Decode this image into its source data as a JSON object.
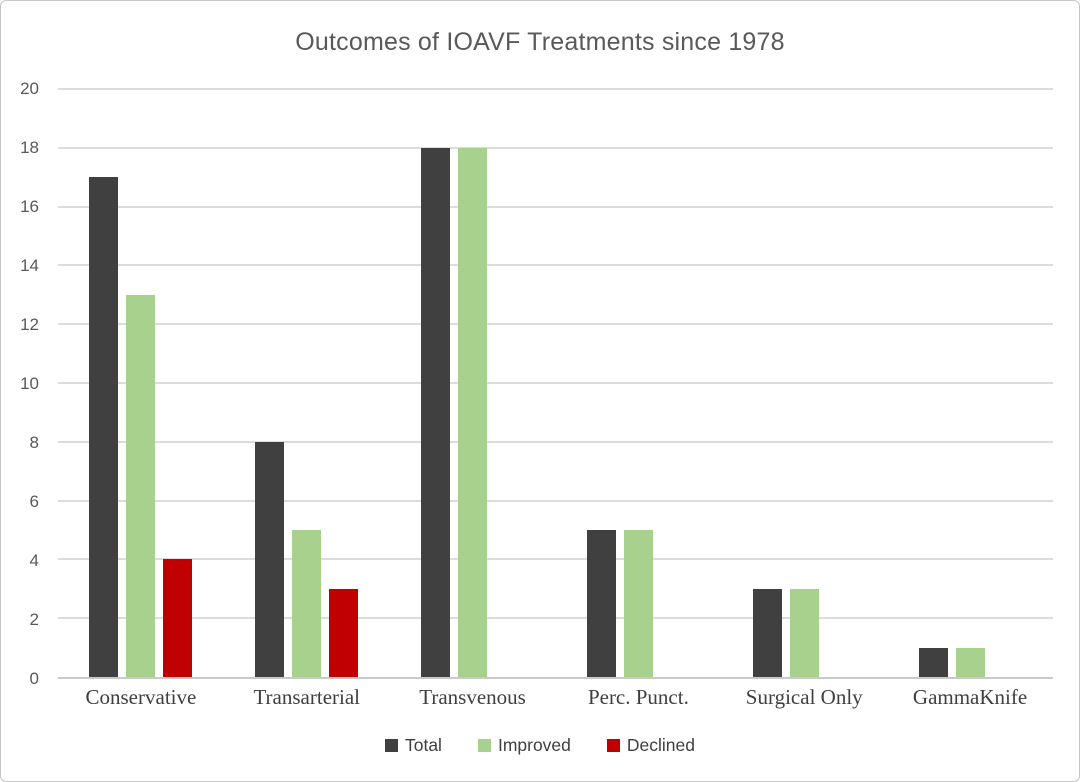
{
  "chart_data": {
    "type": "bar",
    "title": "Outcomes of IOAVF Treatments since 1978",
    "categories": [
      "Conservative",
      "Transarterial",
      "Transvenous",
      "Perc. Punct.",
      "Surgical Only",
      "GammaKnife"
    ],
    "series": [
      {
        "name": "Total",
        "color": "#404040",
        "values": [
          17,
          8,
          18,
          5,
          3,
          1
        ]
      },
      {
        "name": "Improved",
        "color": "#a9d18e",
        "values": [
          13,
          5,
          18,
          5,
          3,
          1
        ]
      },
      {
        "name": "Declined",
        "color": "#c00000",
        "values": [
          4,
          3,
          0,
          0,
          0,
          0
        ]
      }
    ],
    "xlabel": "",
    "ylabel": "",
    "ylim": [
      0,
      20
    ],
    "yticks": [
      0,
      2,
      4,
      6,
      8,
      10,
      12,
      14,
      16,
      18,
      20
    ],
    "grid": true,
    "legend_position": "bottom",
    "colors": {
      "title_text": "#595959",
      "axis_text": "#595959",
      "category_text": "#3f3f3f",
      "gridline": "#dcdcdc",
      "frame_border": "#c6c6c6",
      "background": "#ffffff"
    }
  }
}
